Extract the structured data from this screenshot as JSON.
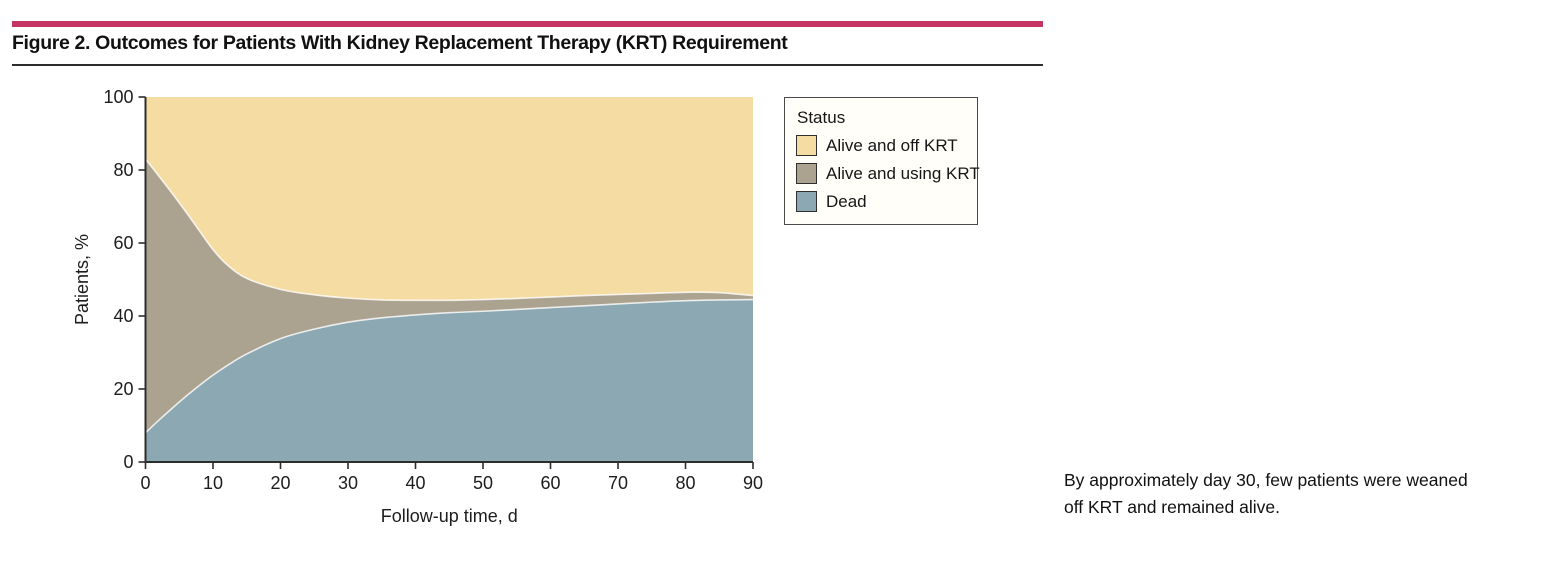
{
  "figure": {
    "title": "Figure 2. Outcomes for Patients With Kidney Replacement Therapy (KRT) Requirement",
    "accent_color": "#C43467",
    "rule_color": "#2d2d2d"
  },
  "legend": {
    "title": "Status",
    "items": [
      {
        "label": "Alive and off KRT",
        "color": "#F5DCA3"
      },
      {
        "label": "Alive and using KRT",
        "color": "#ACA290"
      },
      {
        "label": "Dead",
        "color": "#8CA8B2"
      }
    ]
  },
  "caption": {
    "lines": [
      "By approximately day 30, few patients were weaned",
      "off KRT and remained alive."
    ]
  },
  "chart_data": {
    "type": "area",
    "stacked": true,
    "title": "",
    "xlabel": "Follow-up time, d",
    "ylabel": "Patients, %",
    "xlim": [
      0,
      90
    ],
    "ylim": [
      0,
      100
    ],
    "xticks": [
      0,
      10,
      20,
      30,
      40,
      50,
      60,
      70,
      80,
      90
    ],
    "yticks": [
      0,
      20,
      40,
      60,
      80,
      100
    ],
    "grid": false,
    "legend_position": "outside-right",
    "x": [
      0,
      2,
      4,
      6,
      8,
      10,
      12,
      15,
      20,
      25,
      30,
      35,
      40,
      45,
      50,
      55,
      60,
      65,
      70,
      75,
      80,
      85,
      90
    ],
    "series": [
      {
        "name": "Dead",
        "color": "#8CA8B2",
        "values": [
          8,
          11.5,
          14.8,
          18,
          21,
          23.8,
          26.3,
          29.6,
          33.8,
          36.4,
          38.3,
          39.5,
          40.3,
          40.9,
          41.3,
          41.8,
          42.3,
          42.8,
          43.3,
          43.8,
          44.2,
          44.4,
          44.5
        ]
      },
      {
        "name": "Alive and using KRT",
        "color": "#ACA290",
        "values": [
          75,
          66.8,
          58.7,
          50.5,
          42.3,
          34.4,
          27.9,
          20.7,
          13.5,
          9.4,
          6.6,
          4.9,
          4.0,
          3.4,
          3.2,
          3.0,
          2.9,
          2.8,
          2.6,
          2.4,
          2.3,
          2.0,
          1.1
        ]
      },
      {
        "name": "Alive and off KRT",
        "color": "#F5DCA3",
        "values": [
          17,
          21.7,
          26.5,
          31.5,
          36.7,
          41.8,
          45.8,
          49.7,
          52.7,
          54.2,
          55.1,
          55.6,
          55.7,
          55.7,
          55.5,
          55.2,
          54.8,
          54.4,
          54.1,
          53.8,
          53.5,
          53.6,
          54.4
        ]
      }
    ],
    "boundary_stroke": "rgba(255,255,255,0.8)",
    "axis_color": "#2d2d2d"
  }
}
